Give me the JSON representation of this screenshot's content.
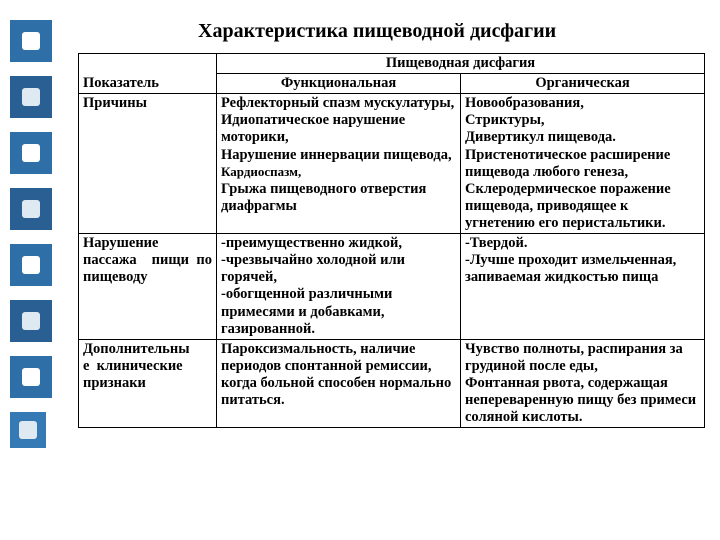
{
  "decor": {
    "count": 8,
    "color_a": "#2f6fa8",
    "color_b": "#2a5f93",
    "inner": "#ffffff"
  },
  "title": "Характеристика пищеводной дисфагии",
  "table": {
    "head": {
      "indicator": "Показатель",
      "group": "Пищеводная дисфагия",
      "col_func": "Функциональная",
      "col_org": "Органическая"
    },
    "rows": [
      {
        "label": "Причины",
        "func": "Рефлекторный спазм мускулатуры,\nИдиопатическое нарушение моторики,\nНарушение иннервации пищевода,\nКардиоспазм,\nГрыжа пищеводного отверстия диафрагмы",
        "org": "Новообразования,\nСтриктуры,\nДивертикул пищевода.\nПристенотическое расширение пищевода любого генеза,\nСклеродермическое поражение пищевода, приводящее к угнетению его перистальтики."
      },
      {
        "label": "Нарушение пассажа пищи по пищеводу",
        "func": "-преимущественно жидкой,\n-чрезвычайно холодной или горячей,\n-обогщенной различными примесями и добавками, газированной.",
        "org": "-Твердой.\n-Лучше проходит измельченная, запиваемая жидкостью пища"
      },
      {
        "label": "Дополнительные клинические признаки",
        "func": "Пароксизмальность, наличие периодов спонтанной ремиссии, когда больной способен нормально питаться.",
        "org": "Чувство полноты, распирания за грудиной после еды,\nФонтанная рвота, содержащая непереваренную пищу без примеси соляной кислоты."
      }
    ]
  }
}
